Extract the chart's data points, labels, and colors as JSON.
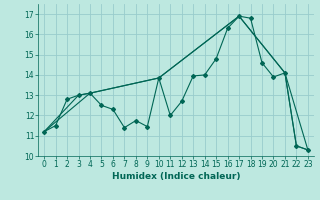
{
  "xlabel": "Humidex (Indice chaleur)",
  "bg_color": "#bde8e0",
  "grid_color": "#99cccc",
  "line_color": "#006655",
  "xlim": [
    -0.5,
    23.5
  ],
  "ylim": [
    10.0,
    17.5
  ],
  "xticks": [
    0,
    1,
    2,
    3,
    4,
    5,
    6,
    7,
    8,
    9,
    10,
    11,
    12,
    13,
    14,
    15,
    16,
    17,
    18,
    19,
    20,
    21,
    22,
    23
  ],
  "yticks": [
    10,
    11,
    12,
    13,
    14,
    15,
    16,
    17
  ],
  "series1_x": [
    0,
    1,
    2,
    3,
    4,
    5,
    6,
    7,
    8,
    9,
    10,
    11,
    12,
    13,
    14,
    15,
    16,
    17,
    18,
    19,
    20,
    21,
    22,
    23
  ],
  "series1_y": [
    11.2,
    11.5,
    12.8,
    13.0,
    13.1,
    12.5,
    12.3,
    11.4,
    11.75,
    11.45,
    13.85,
    12.0,
    12.7,
    13.95,
    14.0,
    14.8,
    16.3,
    16.9,
    16.8,
    14.6,
    13.9,
    14.1,
    10.5,
    10.3
  ],
  "series2_x": [
    0,
    3,
    4,
    10,
    17,
    21,
    22,
    23
  ],
  "series2_y": [
    11.2,
    13.0,
    13.1,
    13.85,
    16.9,
    14.1,
    10.5,
    10.3
  ],
  "series3_x": [
    0,
    4,
    10,
    17,
    21,
    23
  ],
  "series3_y": [
    11.2,
    13.1,
    13.85,
    16.9,
    14.1,
    10.3
  ]
}
